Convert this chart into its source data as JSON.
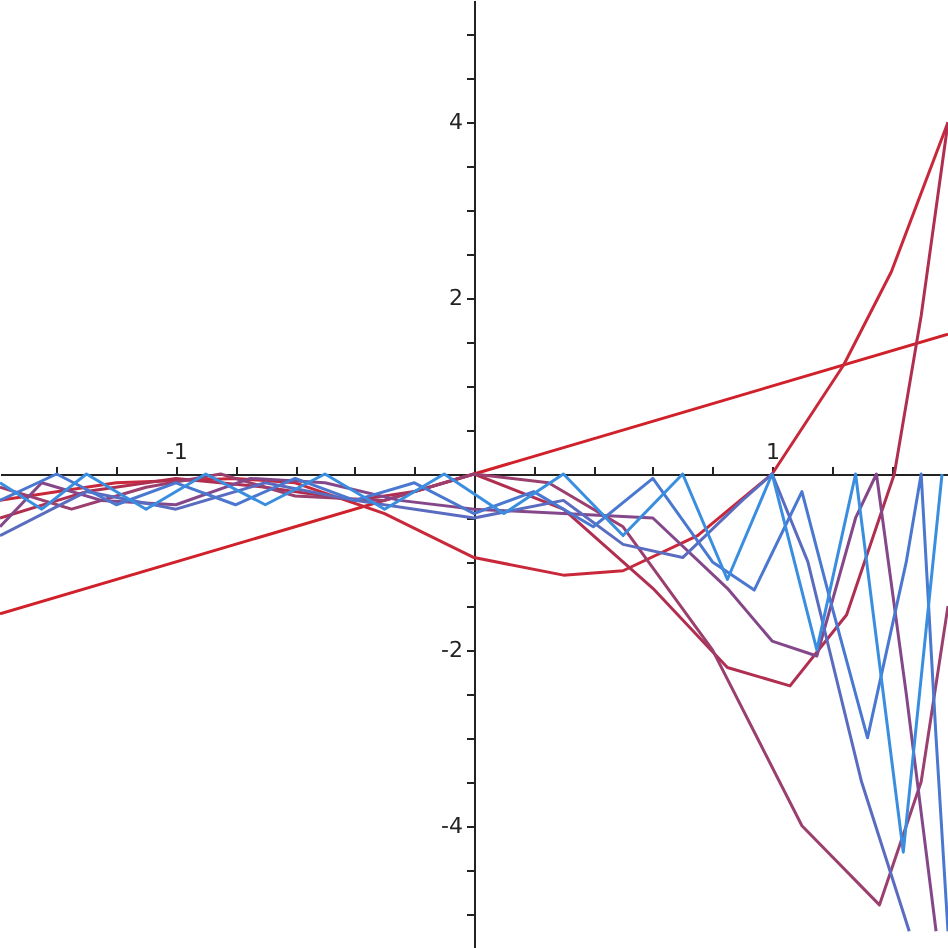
{
  "chart_data": {
    "type": "line",
    "xlim": [
      -1.59,
      1.59
    ],
    "ylim": [
      -5.39,
      5.39
    ],
    "xticks": [
      {
        "value": -1.4,
        "label": null
      },
      {
        "value": -1.2,
        "label": null
      },
      -1,
      {
        "value": -0.8,
        "label": null
      },
      {
        "value": -0.6,
        "label": null
      },
      {
        "value": -0.4,
        "label": null
      },
      {
        "value": -0.2,
        "label": null
      },
      {
        "value": 0.2,
        "label": null
      },
      {
        "value": 0.4,
        "label": null
      },
      {
        "value": 0.6,
        "label": null
      },
      {
        "value": 0.8,
        "label": null
      },
      1,
      {
        "value": 1.2,
        "label": null
      },
      {
        "value": 1.4,
        "label": null
      }
    ],
    "yticks": [
      {
        "value": -5,
        "label": null
      },
      {
        "value": -4.5,
        "label": null
      },
      -4,
      {
        "value": -3.5,
        "label": null
      },
      {
        "value": -3,
        "label": null
      },
      {
        "value": -2.5,
        "label": null
      },
      -2,
      {
        "value": -1.5,
        "label": null
      },
      {
        "value": -1,
        "label": null
      },
      {
        "value": -0.5,
        "label": null
      },
      {
        "value": 0.5,
        "label": null
      },
      {
        "value": 1,
        "label": null
      },
      {
        "value": 1.5,
        "label": null
      },
      2,
      {
        "value": 2.5,
        "label": null
      },
      {
        "value": 3,
        "label": null
      },
      {
        "value": 3.5,
        "label": null
      },
      4,
      {
        "value": 4.5,
        "label": null
      },
      {
        "value": 5,
        "label": null
      }
    ],
    "grid": false,
    "marker": "none",
    "line_style": "solid",
    "series": [
      {
        "color": "#d0202a",
        "x": [
          -1.59,
          1.59
        ],
        "values": [
          -1.59,
          1.59
        ]
      },
      {
        "color": "#c8283a",
        "x": [
          -1.59,
          -1.2,
          -0.8,
          -0.6,
          -0.3,
          0,
          0.3,
          0.5,
          0.75,
          1.0,
          1.24,
          1.4,
          1.59
        ],
        "values": [
          -0.3,
          -0.1,
          -0.05,
          -0.1,
          -0.45,
          -0.95,
          -1.15,
          -1.1,
          -0.7,
          0,
          1.24,
          2.3,
          4.0
        ]
      },
      {
        "color": "#b02f50",
        "x": [
          -1.59,
          -1.3,
          -1.0,
          -0.7,
          -0.4,
          -0.2,
          0,
          0.3,
          0.6,
          0.85,
          1.06,
          1.25,
          1.41,
          1.5,
          1.59
        ],
        "values": [
          -0.5,
          -0.2,
          -0.05,
          -0.15,
          -0.3,
          -0.2,
          0,
          -0.4,
          -1.3,
          -2.2,
          -2.41,
          -1.6,
          0,
          1.8,
          4.0
        ]
      },
      {
        "color": "#9a3f6e",
        "x": [
          -1.59,
          -1.35,
          -1.1,
          -0.85,
          -0.6,
          -0.3,
          0,
          0.25,
          0.5,
          0.8,
          1.1,
          1.36,
          1.5,
          1.59
        ],
        "values": [
          -0.15,
          -0.4,
          -0.15,
          0,
          -0.25,
          -0.3,
          0,
          -0.1,
          -0.6,
          -2.0,
          -4.0,
          -4.9,
          -3.5,
          -1.5
        ]
      },
      {
        "color": "#84488a",
        "x": [
          -1.59,
          -1.45,
          -1.25,
          -1.0,
          -0.75,
          -0.5,
          -0.25,
          0,
          0.3,
          0.6,
          0.85,
          1.0,
          1.15,
          1.28,
          1.35,
          1.45,
          1.55
        ],
        "values": [
          -0.6,
          -0.1,
          -0.3,
          -0.35,
          -0.05,
          -0.1,
          -0.3,
          -0.4,
          -0.45,
          -0.5,
          -1.3,
          -1.9,
          -2.07,
          -0.5,
          0,
          -2.5,
          -5.2
        ]
      },
      {
        "color": "#5a6cc0",
        "x": [
          -1.59,
          -1.3,
          -1.0,
          -0.7,
          -0.4,
          0,
          0.3,
          0.5,
          0.7,
          0.9,
          1.0,
          1.12,
          1.3,
          1.46
        ],
        "values": [
          -0.7,
          -0.2,
          -0.4,
          -0.1,
          -0.3,
          -0.5,
          -0.3,
          -0.8,
          -0.95,
          -0.3,
          0,
          -1.0,
          -3.5,
          -5.2
        ]
      },
      {
        "color": "#4a78d0",
        "x": [
          -1.59,
          -1.4,
          -1.2,
          -1.0,
          -0.8,
          -0.6,
          -0.4,
          -0.2,
          0,
          0.2,
          0.4,
          0.6,
          0.8,
          0.94,
          1.1,
          1.2,
          1.32,
          1.45,
          1.5,
          1.55,
          1.59
        ],
        "values": [
          -0.3,
          0,
          -0.35,
          -0.1,
          -0.35,
          -0.05,
          -0.3,
          -0.1,
          -0.45,
          -0.2,
          -0.6,
          -0.05,
          -1.0,
          -1.32,
          -0.2,
          -1.5,
          -3.0,
          -1.0,
          0,
          -3.0,
          -5.2
        ]
      },
      {
        "color": "#3a8ee0",
        "x": [
          -1.59,
          -1.45,
          -1.3,
          -1.1,
          -0.9,
          -0.7,
          -0.5,
          -0.3,
          -0.1,
          0.1,
          0.3,
          0.5,
          0.7,
          0.85,
          1.0,
          1.15,
          1.28,
          1.44,
          1.57
        ],
        "values": [
          -0.1,
          -0.4,
          0,
          -0.4,
          0,
          -0.35,
          0,
          -0.4,
          0,
          -0.45,
          0,
          -0.7,
          0,
          -1.2,
          0,
          -2.0,
          0,
          -4.3,
          0
        ]
      }
    ]
  }
}
